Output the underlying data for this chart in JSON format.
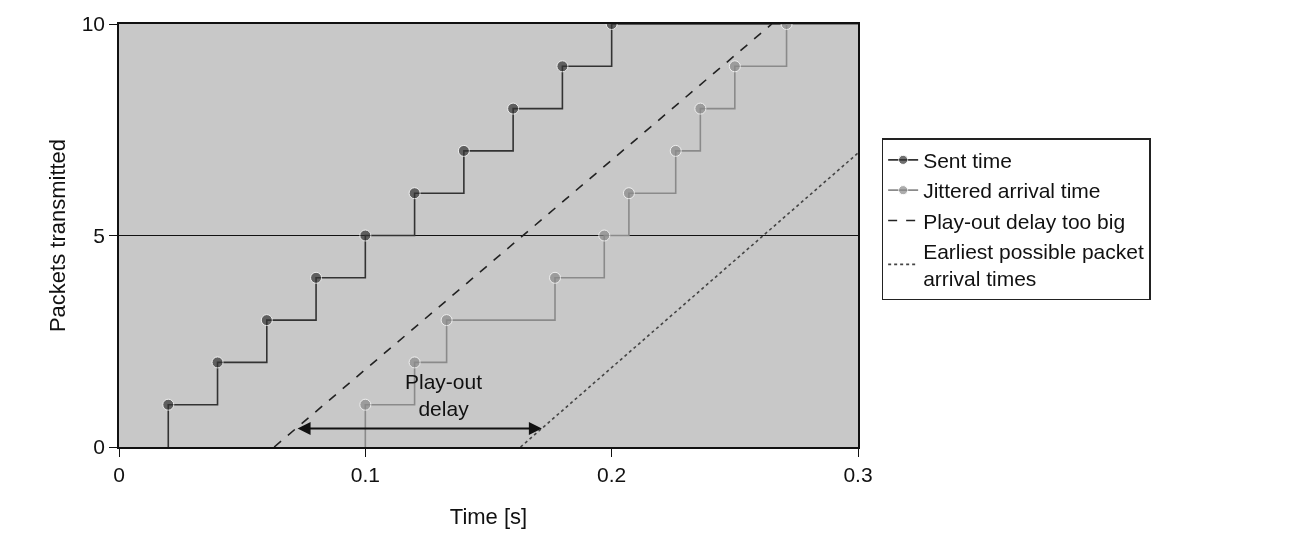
{
  "chart_data": {
    "type": "step",
    "xlabel": "Time [s]",
    "ylabel": "Packets transmitted",
    "xlim": [
      0,
      0.3
    ],
    "ylim": [
      0,
      10
    ],
    "xticks": [
      0,
      0.1,
      0.2,
      0.3
    ],
    "yticks": [
      0,
      5,
      10
    ],
    "grid": "y",
    "legend": "right",
    "series": [
      {
        "name": "Sent time",
        "color": "#333333",
        "marker": "circle",
        "line_style": "solid",
        "x": [
          0.02,
          0.02,
          0.04,
          0.06,
          0.08,
          0.1,
          0.12,
          0.14,
          0.16,
          0.18,
          0.2,
          0.3
        ],
        "values": [
          0,
          1,
          2,
          3,
          4,
          5,
          6,
          7,
          8,
          9,
          10,
          10
        ]
      },
      {
        "name": "Jittered arrival time",
        "color": "#8a8a8a",
        "marker": "circle",
        "line_style": "solid",
        "x": [
          0.1,
          0.1,
          0.12,
          0.133,
          0.177,
          0.197,
          0.207,
          0.226,
          0.236,
          0.25,
          0.271,
          0.3
        ],
        "values": [
          0,
          1,
          2,
          3,
          4,
          5,
          6,
          7,
          8,
          9,
          10,
          10
        ]
      },
      {
        "name": "Play-out delay too big",
        "type": "line",
        "color": "#222222",
        "marker": "none",
        "line_style": "dashed",
        "x": [
          0.063,
          0.265
        ],
        "values": [
          0,
          10
        ]
      },
      {
        "name": "Earliest possible packet arrival times",
        "type": "line",
        "color": "#444444",
        "marker": "none",
        "line_style": "dotted",
        "x": [
          0.163,
          0.3
        ],
        "values": [
          0,
          6.95
        ]
      }
    ],
    "annotations": [
      "Play-out delay"
    ]
  }
}
